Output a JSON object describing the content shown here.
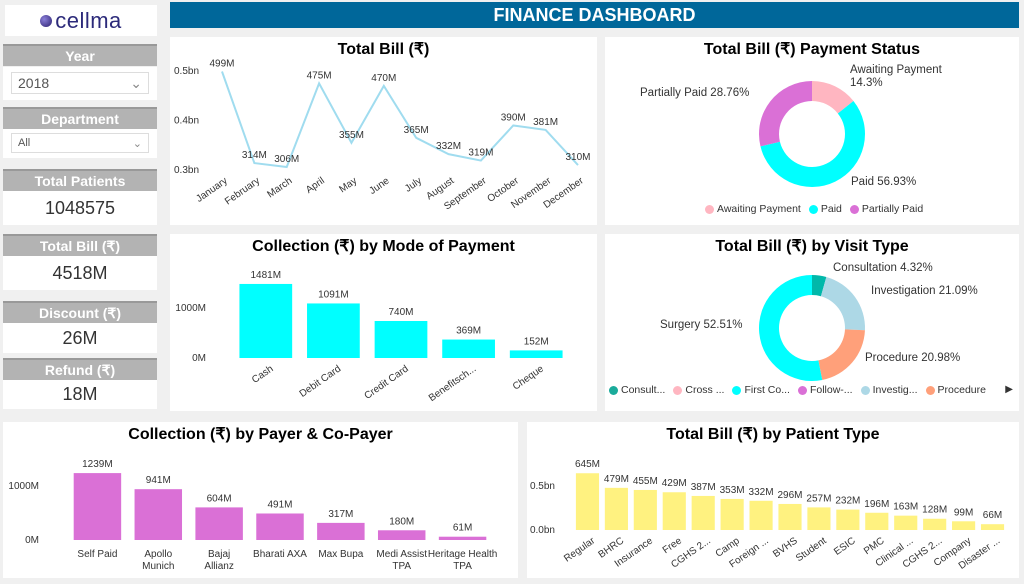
{
  "logo": {
    "text": "cellma"
  },
  "header": {
    "title": "FINANCE DASHBOARD"
  },
  "filters": {
    "year_label": "Year",
    "year_value": "2018",
    "department_label": "Department",
    "department_value": "All"
  },
  "kpis": [
    {
      "label": "Total Patients",
      "value": "1048575"
    },
    {
      "label": "Total Bill (₹)",
      "value": "4518M"
    },
    {
      "label": "Discount (₹)",
      "value": "26M"
    },
    {
      "label": "Refund (₹)",
      "value": "18M"
    }
  ],
  "chart_data": [
    {
      "id": "total_bill",
      "type": "line",
      "title": "Total Bill (₹)",
      "unit": "M",
      "color": "#a0dcef",
      "categories": [
        "January",
        "February",
        "March",
        "April",
        "May",
        "June",
        "July",
        "August",
        "September",
        "October",
        "November",
        "December"
      ],
      "values": [
        499,
        314,
        306,
        475,
        355,
        470,
        365,
        332,
        319,
        390,
        381,
        310
      ],
      "labels": [
        "499M",
        "314M",
        "306M",
        "475M",
        "355M",
        "470M",
        "365M",
        "332M",
        "319M",
        "390M",
        "381M",
        "310M"
      ],
      "yticks": [
        "0.3bn",
        "0.4bn",
        "0.5bn"
      ],
      "ytick_values": [
        300,
        400,
        500
      ],
      "ylim": [
        300,
        500
      ],
      "grid": false
    },
    {
      "id": "payment_status",
      "type": "pie",
      "title": "Total Bill (₹) Payment Status",
      "slices": [
        {
          "name": "Awaiting Payment",
          "value": 14.3,
          "label": "Awaiting Payment 14.3%",
          "color": "#ffb6c1"
        },
        {
          "name": "Paid",
          "value": 56.93,
          "label": "Paid 56.93%",
          "color": "#00ffff"
        },
        {
          "name": "Partially Paid",
          "value": 28.76,
          "label": "Partially Paid 28.76%",
          "color": "#da70d6"
        }
      ],
      "legend": [
        "Awaiting Payment",
        "Paid",
        "Partially Paid"
      ],
      "legend_position": "bottom"
    },
    {
      "id": "mode_of_payment",
      "type": "bar",
      "title": "Collection (₹) by Mode of Payment",
      "color": "#00ffff",
      "categories": [
        "Cash",
        "Debit Card",
        "Credit Card",
        "Benefitsch...",
        "Cheque"
      ],
      "values": [
        1481,
        1091,
        740,
        369,
        152
      ],
      "labels": [
        "1481M",
        "1091M",
        "740M",
        "369M",
        "152M"
      ],
      "yticks": [
        "0M",
        "1000M"
      ],
      "ytick_values": [
        0,
        1000
      ]
    },
    {
      "id": "visit_type",
      "type": "pie",
      "title": "Total Bill (₹) by Visit Type",
      "slices": [
        {
          "name": "Consultation",
          "value": 4.32,
          "label": "Consultation 4.32%",
          "color": "#01b8aa"
        },
        {
          "name": "Investigation",
          "value": 21.09,
          "label": "Investigation 21.09%",
          "color": "#add8e6"
        },
        {
          "name": "Procedure",
          "value": 20.98,
          "label": "Procedure 20.98%",
          "color": "#ffa07a"
        },
        {
          "name": "Surgery",
          "value": 52.51,
          "label": "Surgery 52.51%",
          "color": "#00ffff"
        }
      ],
      "legend": [
        {
          "name": "Consult...",
          "color": "#1aab9b"
        },
        {
          "name": "Cross ...",
          "color": "#ffb6c1"
        },
        {
          "name": "First Co...",
          "color": "#00ffff"
        },
        {
          "name": "Follow-...",
          "color": "#da70d6"
        },
        {
          "name": "Investig...",
          "color": "#add8e6"
        },
        {
          "name": "Procedure",
          "color": "#ffa07a"
        }
      ],
      "legend_position": "bottom"
    },
    {
      "id": "payer",
      "type": "bar",
      "title": "Collection (₹) by Payer & Co-Payer",
      "color": "#da70d6",
      "categories": [
        "Self Paid",
        "Apollo Munich",
        "Bajaj Allianz",
        "Bharati AXA",
        "Max Bupa",
        "Medi Assist TPA",
        "Heritage Health TPA"
      ],
      "values": [
        1239,
        941,
        604,
        491,
        317,
        180,
        61
      ],
      "labels": [
        "1239M",
        "941M",
        "604M",
        "491M",
        "317M",
        "180M",
        "61M"
      ],
      "yticks": [
        "0M",
        "1000M"
      ],
      "ytick_values": [
        0,
        1000
      ]
    },
    {
      "id": "patient_type",
      "type": "bar",
      "title": "Total Bill (₹) by Patient Type",
      "color": "#fff280",
      "categories": [
        "Regular",
        "BHRC",
        "Insurance",
        "Free",
        "CGHS 2...",
        "Camp",
        "Foreign ...",
        "BVHS",
        "Student",
        "ESIC",
        "PMC",
        "Clinical ...",
        "CGHS 2...",
        "Company",
        "Disaster ..."
      ],
      "values": [
        645,
        479,
        455,
        429,
        387,
        353,
        332,
        296,
        257,
        232,
        196,
        163,
        128,
        99,
        66
      ],
      "labels": [
        "645M",
        "479M",
        "455M",
        "429M",
        "387M",
        "353M",
        "332M",
        "296M",
        "257M",
        "232M",
        "196M",
        "163M",
        "128M",
        "99M",
        "66M"
      ],
      "yticks": [
        "0.0bn",
        "0.5bn"
      ],
      "ytick_values": [
        0,
        500
      ]
    }
  ]
}
